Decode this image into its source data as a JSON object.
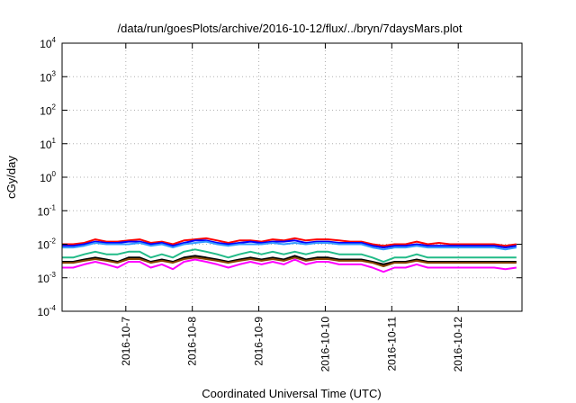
{
  "chart_data": {
    "type": "line",
    "title": "/data/run/goesPlots/archive/2016-10-12/flux/../bryn/7daysMars.plot",
    "xlabel": "Coordinated Universal Time (UTC)",
    "ylabel": "cGy/day",
    "y_scale": "log",
    "ylim": [
      0.0001,
      10000
    ],
    "xlim": [
      "2016-10-06T01:00",
      "2016-10-12T23:00"
    ],
    "grid": true,
    "y_ticks": [
      {
        "base": "10",
        "exp": "4",
        "value": 10000
      },
      {
        "base": "10",
        "exp": "3",
        "value": 1000
      },
      {
        "base": "10",
        "exp": "2",
        "value": 100
      },
      {
        "base": "10",
        "exp": "1",
        "value": 10
      },
      {
        "base": "10",
        "exp": "0",
        "value": 1
      },
      {
        "base": "10",
        "exp": "-1",
        "value": 0.1
      },
      {
        "base": "10",
        "exp": "-2",
        "value": 0.01
      },
      {
        "base": "10",
        "exp": "-3",
        "value": 0.001
      },
      {
        "base": "10",
        "exp": "-4",
        "value": 0.0001
      }
    ],
    "x_ticks": [
      {
        "label": "2016-10-7",
        "value": "2016-10-07T00:00"
      },
      {
        "label": "2016-10-8",
        "value": "2016-10-08T00:00"
      },
      {
        "label": "2016-10-9",
        "value": "2016-10-09T00:00"
      },
      {
        "label": "2016-10-10",
        "value": "2016-10-10T00:00"
      },
      {
        "label": "2016-10-11",
        "value": "2016-10-11T00:00"
      },
      {
        "label": "2016-10-12",
        "value": "2016-10-12T00:00"
      }
    ],
    "x": [
      "2016-10-06T01:00",
      "2016-10-06T05:00",
      "2016-10-06T09:00",
      "2016-10-06T13:00",
      "2016-10-06T17:00",
      "2016-10-06T21:00",
      "2016-10-07T01:00",
      "2016-10-07T05:00",
      "2016-10-07T09:00",
      "2016-10-07T13:00",
      "2016-10-07T17:00",
      "2016-10-07T21:00",
      "2016-10-08T01:00",
      "2016-10-08T05:00",
      "2016-10-08T09:00",
      "2016-10-08T13:00",
      "2016-10-08T17:00",
      "2016-10-08T21:00",
      "2016-10-09T01:00",
      "2016-10-09T05:00",
      "2016-10-09T09:00",
      "2016-10-09T13:00",
      "2016-10-09T17:00",
      "2016-10-09T21:00",
      "2016-10-10T01:00",
      "2016-10-10T05:00",
      "2016-10-10T09:00",
      "2016-10-10T13:00",
      "2016-10-10T17:00",
      "2016-10-10T21:00",
      "2016-10-11T01:00",
      "2016-10-11T05:00",
      "2016-10-11T09:00",
      "2016-10-11T13:00",
      "2016-10-11T17:00",
      "2016-10-11T21:00",
      "2016-10-12T01:00",
      "2016-10-12T05:00",
      "2016-10-12T09:00",
      "2016-10-12T13:00",
      "2016-10-12T17:00",
      "2016-10-12T21:00"
    ],
    "series": [
      {
        "color": "#ff0000",
        "values": [
          0.01,
          0.01,
          0.011,
          0.014,
          0.012,
          0.012,
          0.013,
          0.014,
          0.011,
          0.012,
          0.01,
          0.013,
          0.014,
          0.015,
          0.013,
          0.011,
          0.013,
          0.013,
          0.012,
          0.014,
          0.013,
          0.015,
          0.013,
          0.014,
          0.014,
          0.013,
          0.012,
          0.012,
          0.01,
          0.009,
          0.01,
          0.01,
          0.012,
          0.01,
          0.011,
          0.01,
          0.01,
          0.01,
          0.01,
          0.01,
          0.009,
          0.01
        ]
      },
      {
        "color": "#0000ff",
        "values": [
          0.009,
          0.009,
          0.01,
          0.012,
          0.011,
          0.011,
          0.012,
          0.012,
          0.01,
          0.011,
          0.009,
          0.011,
          0.013,
          0.013,
          0.011,
          0.01,
          0.011,
          0.012,
          0.011,
          0.012,
          0.012,
          0.013,
          0.011,
          0.012,
          0.012,
          0.011,
          0.011,
          0.011,
          0.009,
          0.008,
          0.009,
          0.009,
          0.01,
          0.009,
          0.009,
          0.009,
          0.009,
          0.009,
          0.009,
          0.009,
          0.008,
          0.009
        ]
      },
      {
        "color": "#3399ff",
        "values": [
          0.008,
          0.008,
          0.009,
          0.011,
          0.01,
          0.01,
          0.01,
          0.011,
          0.009,
          0.01,
          0.008,
          0.01,
          0.011,
          0.012,
          0.01,
          0.009,
          0.01,
          0.01,
          0.01,
          0.011,
          0.01,
          0.011,
          0.01,
          0.011,
          0.011,
          0.01,
          0.01,
          0.01,
          0.008,
          0.007,
          0.008,
          0.008,
          0.009,
          0.008,
          0.008,
          0.008,
          0.008,
          0.008,
          0.008,
          0.008,
          0.007,
          0.008
        ]
      },
      {
        "color": "#22bb88",
        "values": [
          0.004,
          0.004,
          0.005,
          0.006,
          0.005,
          0.005,
          0.006,
          0.006,
          0.004,
          0.005,
          0.004,
          0.006,
          0.007,
          0.006,
          0.005,
          0.004,
          0.005,
          0.006,
          0.005,
          0.006,
          0.005,
          0.006,
          0.005,
          0.006,
          0.006,
          0.005,
          0.005,
          0.005,
          0.004,
          0.003,
          0.004,
          0.004,
          0.005,
          0.004,
          0.004,
          0.004,
          0.004,
          0.004,
          0.004,
          0.004,
          0.004,
          0.004
        ]
      },
      {
        "color": "#000000",
        "values": [
          0.003,
          0.003,
          0.0035,
          0.004,
          0.0035,
          0.003,
          0.004,
          0.004,
          0.003,
          0.0035,
          0.003,
          0.004,
          0.0045,
          0.004,
          0.0035,
          0.003,
          0.0035,
          0.004,
          0.0035,
          0.004,
          0.0035,
          0.0045,
          0.0035,
          0.004,
          0.004,
          0.0035,
          0.0035,
          0.0035,
          0.003,
          0.0025,
          0.003,
          0.003,
          0.0035,
          0.003,
          0.003,
          0.003,
          0.003,
          0.003,
          0.003,
          0.003,
          0.003,
          0.003
        ]
      },
      {
        "color": "#884400",
        "values": [
          0.0028,
          0.0028,
          0.0032,
          0.0036,
          0.0032,
          0.0028,
          0.0036,
          0.0036,
          0.0028,
          0.0032,
          0.0028,
          0.0036,
          0.004,
          0.0036,
          0.0032,
          0.0028,
          0.0032,
          0.0036,
          0.0032,
          0.0036,
          0.0032,
          0.004,
          0.0032,
          0.0036,
          0.0036,
          0.0032,
          0.0032,
          0.0032,
          0.0028,
          0.0022,
          0.0028,
          0.0028,
          0.0032,
          0.0028,
          0.0028,
          0.0028,
          0.0028,
          0.0028,
          0.0028,
          0.0028,
          0.0028,
          0.0028
        ]
      },
      {
        "color": "#ff00ff",
        "values": [
          0.002,
          0.002,
          0.0025,
          0.003,
          0.0025,
          0.002,
          0.003,
          0.003,
          0.002,
          0.0025,
          0.0018,
          0.003,
          0.0035,
          0.003,
          0.0025,
          0.002,
          0.0025,
          0.003,
          0.0025,
          0.003,
          0.0025,
          0.0035,
          0.0025,
          0.003,
          0.003,
          0.0025,
          0.0025,
          0.0025,
          0.002,
          0.0015,
          0.002,
          0.002,
          0.0025,
          0.002,
          0.002,
          0.002,
          0.002,
          0.002,
          0.002,
          0.002,
          0.0018,
          0.002
        ]
      }
    ]
  }
}
